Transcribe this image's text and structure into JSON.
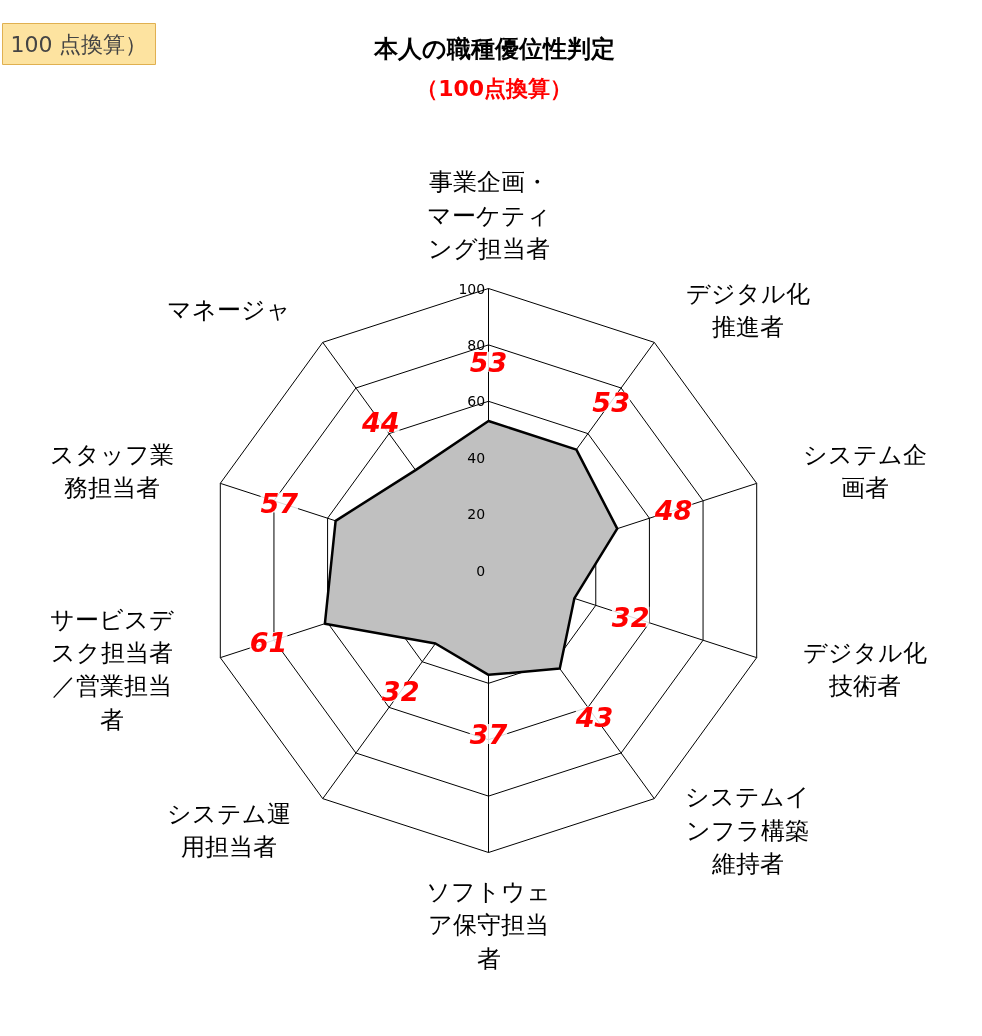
{
  "chart_data": {
    "type": "radar",
    "title": "本人の職種優位性判定",
    "subtitle": "（100点換算）",
    "annotations": [
      "100 点換算）"
    ],
    "categories": [
      "事業企画・マーケティング担当者",
      "デジタル化推進者",
      "システム企画者",
      "デジタル化技術者",
      "システムインフラ構築維持者",
      "ソフトウェア保守担当者",
      "システム運用担当者",
      "サービスデスク担当者／営業担当者",
      "スタッフ業務担当者",
      "マネージャ"
    ],
    "series": [
      {
        "color": "#c0c0c0",
        "values": [
          53,
          53,
          48,
          32,
          43,
          37,
          32,
          61,
          57,
          44
        ]
      }
    ],
    "ylim": [
      0,
      100
    ],
    "yticks": [
      0,
      20,
      40,
      60,
      80,
      100
    ],
    "grid": true,
    "data_labels": true
  }
}
